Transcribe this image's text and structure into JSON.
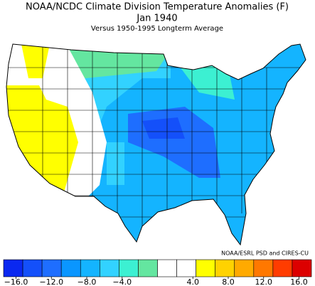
{
  "title": "NOAA/NCDC Climate Division Temperature Anomalies (F)",
  "subtitle": "Jan 1940",
  "note": "Versus 1950-1995 Longterm Average",
  "credit": "NOAA/ESRL PSD and CIRES-CU",
  "colorbar": {
    "colors": [
      "#0a28f0",
      "#1450fa",
      "#1e6eff",
      "#0a96ff",
      "#14b4ff",
      "#32d2ff",
      "#3cf0d2",
      "#64e6a0",
      "#ffffff",
      "#ffffff",
      "#ffff00",
      "#ffd200",
      "#ffaa00",
      "#ff7800",
      "#ff3c00",
      "#dc0000"
    ],
    "xlim": [
      -16,
      16
    ],
    "xticks": [
      {
        "value": -16,
        "label": "−16.0"
      },
      {
        "value": -12,
        "label": "−12.0"
      },
      {
        "value": -8,
        "label": "−8.0"
      },
      {
        "value": -4,
        "label": "−4.0"
      },
      {
        "value": 4,
        "label": "4.0"
      },
      {
        "value": 8,
        "label": "8.0"
      },
      {
        "value": 12,
        "label": "12.0"
      },
      {
        "value": 16,
        "label": "16.0"
      }
    ]
  }
}
